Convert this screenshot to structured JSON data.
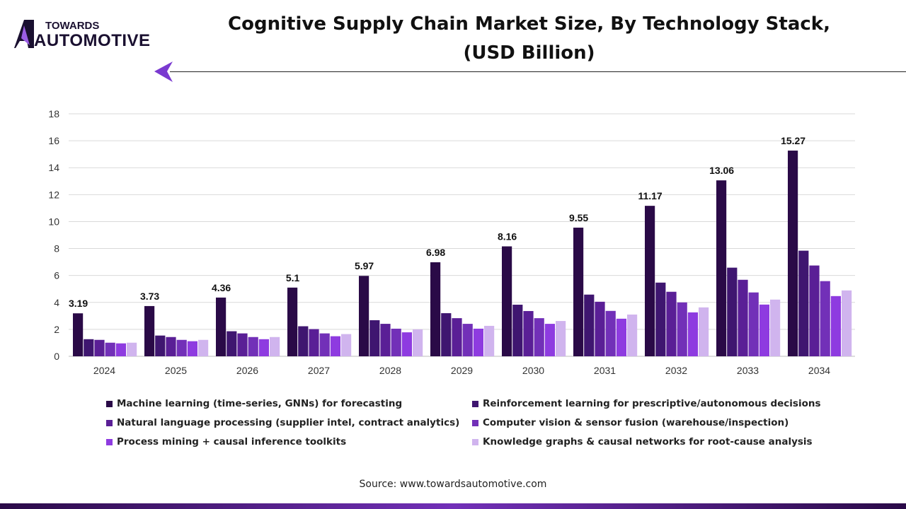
{
  "logo": {
    "top": "TOWARDS",
    "bottom": "AUTOMOTIVE"
  },
  "colors": [
    "#2a0a47",
    "#3f1670",
    "#5a1f96",
    "#7230b8",
    "#8e3be0",
    "#d0b4ee"
  ],
  "source": "Source: www.towardsautomotive.com",
  "chart_data": {
    "type": "bar",
    "title": "Cognitive Supply Chain Market Size, By Technology Stack, (USD Billion)",
    "title_lines": [
      "Cognitive Supply Chain Market Size, By Technology Stack,",
      "(USD Billion)"
    ],
    "xlabel": "",
    "ylabel": "",
    "ylim": [
      0,
      18
    ],
    "yticks": [
      0,
      2,
      4,
      6,
      8,
      10,
      12,
      14,
      16,
      18
    ],
    "grid": true,
    "legend_position": "bottom",
    "categories": [
      "2024",
      "2025",
      "2026",
      "2027",
      "2028",
      "2029",
      "2030",
      "2031",
      "2032",
      "2033",
      "2034"
    ],
    "series": [
      {
        "name": "Machine learning (time-series, GNNs) for forecasting",
        "values": [
          3.19,
          3.73,
          4.36,
          5.1,
          5.97,
          6.98,
          8.16,
          9.55,
          11.17,
          13.06,
          15.27
        ],
        "labeled": true
      },
      {
        "name": "Reinforcement learning for prescriptive/autonomous decisions",
        "values": [
          1.27,
          1.54,
          1.86,
          2.23,
          2.68,
          3.2,
          3.83,
          4.58,
          5.47,
          6.58,
          7.84
        ]
      },
      {
        "name": "Natural language processing (supplier intel, contract analytics)",
        "values": [
          1.22,
          1.43,
          1.7,
          2.02,
          2.41,
          2.83,
          3.36,
          4.05,
          4.79,
          5.68,
          6.74
        ]
      },
      {
        "name": "Computer vision & sensor fusion (warehouse/inspection)",
        "values": [
          1.01,
          1.22,
          1.43,
          1.7,
          2.05,
          2.41,
          2.83,
          3.37,
          4.0,
          4.74,
          5.58
        ]
      },
      {
        "name": "Process mining + causal inference toolkits",
        "values": [
          0.96,
          1.12,
          1.27,
          1.49,
          1.78,
          2.05,
          2.41,
          2.79,
          3.26,
          3.84,
          4.47
        ]
      },
      {
        "name": "Knowledge graphs & causal networks for root-cause analysis",
        "values": [
          1.01,
          1.22,
          1.43,
          1.65,
          2.0,
          2.26,
          2.62,
          3.1,
          3.63,
          4.21,
          4.89
        ]
      }
    ]
  }
}
